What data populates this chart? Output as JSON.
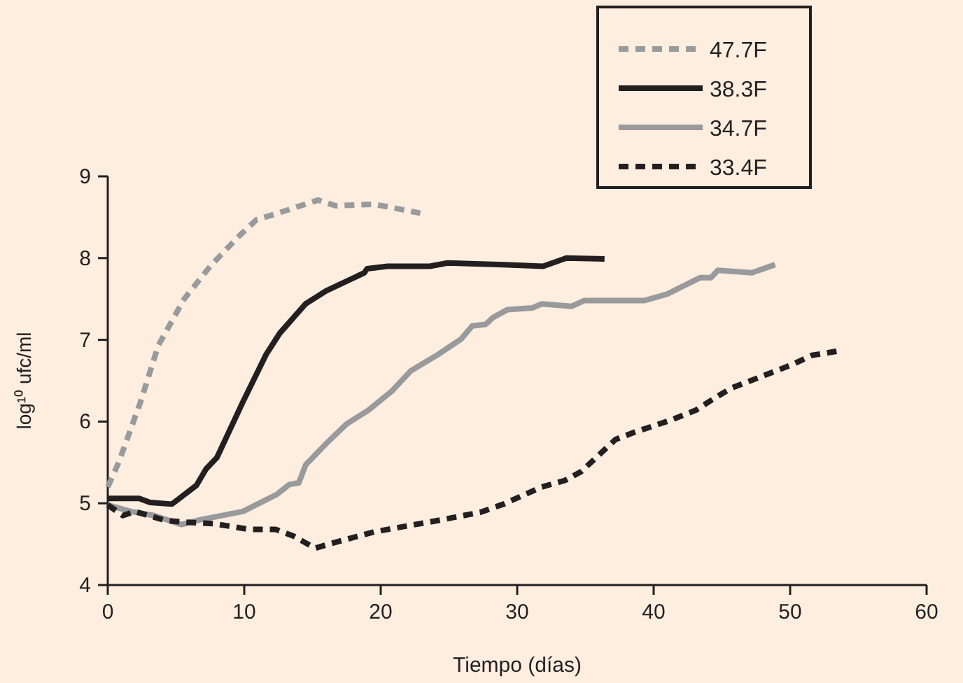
{
  "chart_data": {
    "type": "line",
    "xlabel": "Tiempo (días)",
    "ylabel": "log¹⁰ ufc/ml",
    "xlim": [
      0,
      60
    ],
    "ylim": [
      4,
      9
    ],
    "xticks": [
      0,
      10,
      20,
      30,
      40,
      50,
      60
    ],
    "yticks": [
      4,
      5,
      6,
      7,
      8,
      9
    ],
    "grid": false,
    "legend": "top right",
    "series": [
      {
        "name": "47.7F",
        "color": "#999a9c",
        "line_style": "dashed",
        "x": [
          0,
          0.8,
          2.4,
          3.7,
          5.6,
          7.5,
          9.5,
          10.9,
          12.3,
          15.4,
          16.7,
          19.5,
          22.9
        ],
        "values": [
          5.2,
          5.5,
          6.24,
          6.93,
          7.5,
          7.9,
          8.25,
          8.47,
          8.54,
          8.71,
          8.64,
          8.66,
          8.55
        ]
      },
      {
        "name": "38.3F",
        "color": "#231f20",
        "line_style": "solid",
        "x": [
          0,
          2.3,
          3.1,
          4.7,
          6.5,
          7.2,
          8,
          9.9,
          11.6,
          12.6,
          14.5,
          16,
          18.8,
          19,
          20.5,
          23.6,
          24.9,
          29,
          31.9,
          33.6,
          36.4
        ],
        "values": [
          5.06,
          5.06,
          5.01,
          4.99,
          5.22,
          5.42,
          5.56,
          6.24,
          6.82,
          7.08,
          7.44,
          7.6,
          7.82,
          7.87,
          7.9,
          7.9,
          7.94,
          7.92,
          7.9,
          8.0,
          7.99
        ]
      },
      {
        "name": "34.7F",
        "color": "#999a9c",
        "line_style": "solid",
        "x": [
          0,
          1.7,
          3.4,
          5.4,
          6.8,
          9.9,
          12.4,
          13.3,
          14,
          14.5,
          16,
          17.5,
          19.1,
          20.8,
          22.2,
          24.2,
          25.9,
          26.7,
          27.7,
          28.2,
          29.3,
          31.1,
          31.8,
          34,
          34.9,
          39.3,
          41,
          43.4,
          44.2,
          44.7,
          47.2,
          48.9
        ],
        "values": [
          4.98,
          4.9,
          4.85,
          4.74,
          4.8,
          4.9,
          5.11,
          5.23,
          5.25,
          5.47,
          5.73,
          5.97,
          6.14,
          6.37,
          6.62,
          6.82,
          7.01,
          7.17,
          7.19,
          7.27,
          7.37,
          7.39,
          7.44,
          7.41,
          7.48,
          7.48,
          7.56,
          7.76,
          7.76,
          7.85,
          7.82,
          7.92
        ]
      },
      {
        "name": "33.4F",
        "color": "#231f20",
        "line_style": "dashed",
        "x": [
          0,
          1.1,
          2,
          4.2,
          5.6,
          7.8,
          10.4,
          12.3,
          13.6,
          15.2,
          16.4,
          19.5,
          24.2,
          27.3,
          29,
          31.8,
          33.5,
          34.7,
          37.2,
          38.6,
          41.3,
          43.1,
          44.4,
          45.7,
          48.5,
          50.2,
          51.6,
          53.4
        ],
        "values": [
          4.98,
          4.85,
          4.9,
          4.79,
          4.77,
          4.75,
          4.68,
          4.68,
          4.6,
          4.45,
          4.51,
          4.65,
          4.79,
          4.89,
          4.99,
          5.2,
          5.28,
          5.39,
          5.78,
          5.87,
          6.02,
          6.14,
          6.28,
          6.41,
          6.59,
          6.7,
          6.81,
          6.86
        ]
      }
    ]
  }
}
